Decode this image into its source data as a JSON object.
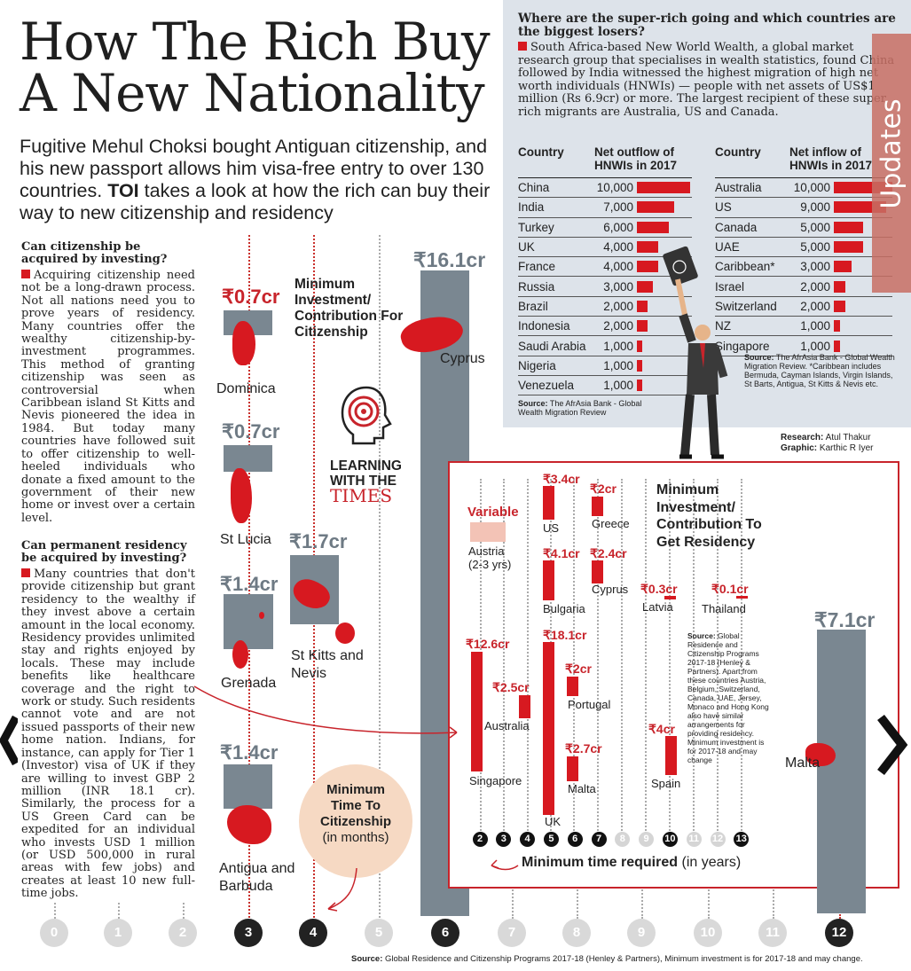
{
  "headline": "How The Rich Buy A New Nationality",
  "deck": {
    "part1": "Fugitive Mehul Choksi bought Antiguan citizenship, and his new passport allows him visa-free entry to over 130 countries.",
    "toi": "TOI",
    "part2": "takes a look at how the rich can buy their way to new citizenship and residency"
  },
  "q1": {
    "title": "Can citizenship be acquired by investing?",
    "body": "Acquiring citizenship need not be a long-drawn process. Not all nations need you to prove years of residency. Many countries offer the wealthy citizenship-by-investment programmes. This method of granting citizenship was seen as controversial when Caribbean island St Kitts and Nevis pioneered the idea in 1984. But today many countries have followed suit to offer citizenship to well-heeled individuals who donate a fixed amount to the government of their new home or invest over a certain level."
  },
  "q2": {
    "title": "Can permanent residency be acquired by investing?",
    "body": "Many countries that don't provide citizenship but grant residency to the wealthy if they invest above a certain amount in the local economy. Residency provides unlimited stay and rights enjoyed by locals. These may include benefits like healthcare coverage and the right to work or study. Such residents cannot vote and are not issued passports of their new home nation. Indians, for instance, can apply for Tier 1 (Investor) visa of UK if they are willing to invest GBP 2 million (INR 18.1 cr). Similarly, the process for a US Green Card can be expedited for an individual who invests USD 1 million (or USD 500,000 in rural areas with few jobs) and creates at least 10 new full-time jobs."
  },
  "citizenship": {
    "title": "Minimum Investment/ Contribution For Citizenship",
    "items": [
      {
        "name": "Dominica",
        "value": "₹0.7cr",
        "months": 3
      },
      {
        "name": "St Lucia",
        "value": "₹0.7cr",
        "months": 3
      },
      {
        "name": "Grenada",
        "value": "₹1.4cr",
        "months": 3
      },
      {
        "name": "St Kitts and Nevis",
        "value": "₹1.7cr",
        "months": 4
      },
      {
        "name": "Antigua and Barbuda",
        "value": "₹1.4cr",
        "months": 3
      },
      {
        "name": "Cyprus",
        "value": "₹16.1cr",
        "months": 6
      },
      {
        "name": "Malta",
        "value": "₹7.1cr",
        "months": 12
      }
    ]
  },
  "time_bubble": {
    "line1": "Minimum Time To Citizenship",
    "line2": "(in months)"
  },
  "months_axis": [
    "0",
    "1",
    "2",
    "3",
    "4",
    "5",
    "6",
    "7",
    "8",
    "9",
    "10",
    "11",
    "12"
  ],
  "months_highlighted": [
    "3",
    "4",
    "6",
    "12"
  ],
  "logo": {
    "line1": "LEARNING",
    "line2": "WITH THE",
    "line3": "TIMES"
  },
  "migration": {
    "question": "Where are the super-rich going and which countries are the biggest losers?",
    "body": "South Africa-based New World Wealth, a global market research group that specialises in wealth statistics, found China followed by India witnessed the highest migration of high net worth individuals (HNWIs) — people with net assets of US$1 million (Rs 6.9cr) or more. The largest recipient of these super rich migrants are Australia, US and Canada.",
    "outflow_headers": [
      "Country",
      "Net outflow of HNWIs in 2017"
    ],
    "inflow_headers": [
      "Country",
      "Net inflow of HNWIs in 2017"
    ],
    "outflow": [
      {
        "country": "China",
        "value": "10,000",
        "num": 10000
      },
      {
        "country": "India",
        "value": "7,000",
        "num": 7000
      },
      {
        "country": "Turkey",
        "value": "6,000",
        "num": 6000
      },
      {
        "country": "UK",
        "value": "4,000",
        "num": 4000
      },
      {
        "country": "France",
        "value": "4,000",
        "num": 4000
      },
      {
        "country": "Russia",
        "value": "3,000",
        "num": 3000
      },
      {
        "country": "Brazil",
        "value": "2,000",
        "num": 2000
      },
      {
        "country": "Indonesia",
        "value": "2,000",
        "num": 2000
      },
      {
        "country": "Saudi Arabia",
        "value": "1,000",
        "num": 1000
      },
      {
        "country": "Nigeria",
        "value": "1,000",
        "num": 1000
      },
      {
        "country": "Venezuela",
        "value": "1,000",
        "num": 1000
      }
    ],
    "inflow": [
      {
        "country": "Australia",
        "value": "10,000",
        "num": 10000
      },
      {
        "country": "US",
        "value": "9,000",
        "num": 9000
      },
      {
        "country": "Canada",
        "value": "5,000",
        "num": 5000
      },
      {
        "country": "UAE",
        "value": "5,000",
        "num": 5000
      },
      {
        "country": "Caribbean*",
        "value": "3,000",
        "num": 3000
      },
      {
        "country": "Israel",
        "value": "2,000",
        "num": 2000
      },
      {
        "country": "Switzerland",
        "value": "2,000",
        "num": 2000
      },
      {
        "country": "NZ",
        "value": "1,000",
        "num": 1000
      },
      {
        "country": "Singapore",
        "value": "1,000",
        "num": 1000
      }
    ],
    "source_left_bold": "Source:",
    "source_left": "The AfrAsia Bank - Global Wealth Migration Review",
    "source_right_bold": "Source:",
    "source_right": "The AfrAsia Bank - Global Wealth Migration Review. *Caribbean includes Bermuda, Cayman Islands, Virgin Islands, St Barts, Antigua, St Kitts & Nevis etc.",
    "colors": {
      "bar": "#d71920",
      "panel": "#dde3ea"
    }
  },
  "credits": {
    "research_label": "Research:",
    "research": "Atul Thakur",
    "graphic_label": "Graphic:",
    "graphic": "Karthic R Iyer"
  },
  "side_tab": "Updates",
  "residency": {
    "title": "Minimum Investment/ Contribution To Get Residency",
    "items": [
      {
        "name": "Austria",
        "sub": "(2-3 yrs)",
        "value": "Variable",
        "years": "2-3"
      },
      {
        "name": "US",
        "value": "₹3.4cr",
        "years": 5
      },
      {
        "name": "Greece",
        "value": "₹2cr",
        "years": 7
      },
      {
        "name": "Bulgaria",
        "value": "₹4.1cr",
        "years": 5
      },
      {
        "name": "Cyprus",
        "value": "₹2.4cr",
        "years": 7
      },
      {
        "name": "Latvia",
        "value": "₹0.3cr",
        "years": 10
      },
      {
        "name": "Thailand",
        "value": "₹0.1cr",
        "years": 13
      },
      {
        "name": "Singapore",
        "value": "₹12.6cr",
        "years": 2
      },
      {
        "name": "Australia",
        "value": "₹2.5cr",
        "years": 4
      },
      {
        "name": "UK",
        "value": "₹18.1cr",
        "years": 5
      },
      {
        "name": "Portugal",
        "value": "₹2cr",
        "years": 6
      },
      {
        "name": "Malta",
        "value": "₹2.7cr",
        "years": 6
      },
      {
        "name": "Spain",
        "value": "₹4cr",
        "years": 10
      }
    ],
    "source_bold": "Source:",
    "source": "Global Residence and Citizenship Programs 2017-18 (Henley & Partners). Apart from these countries Austria, Belgium, Switzerland, Canada, UAE, Jersey, Monaco and Hong Kong also have similar arrangements for providing residency. Minimum investment is for 2017-18 and may change",
    "years_axis": [
      "2",
      "3",
      "4",
      "5",
      "6",
      "7",
      "8",
      "9",
      "10",
      "11",
      "12",
      "13"
    ],
    "years_highlighted": [
      "2",
      "3",
      "4",
      "5",
      "6",
      "7",
      "10",
      "13"
    ],
    "axis_label": "Minimum time required",
    "axis_unit": "(in years)"
  },
  "footer": {
    "bold": "Source:",
    "text": "Global Residence and Citizenship Programs 2017-18 (Henley & Partners), Minimum investment is for 2017-18 and may change."
  },
  "colors": {
    "red": "#d71920",
    "gray_bar": "#7a8791",
    "dark": "#222222"
  }
}
